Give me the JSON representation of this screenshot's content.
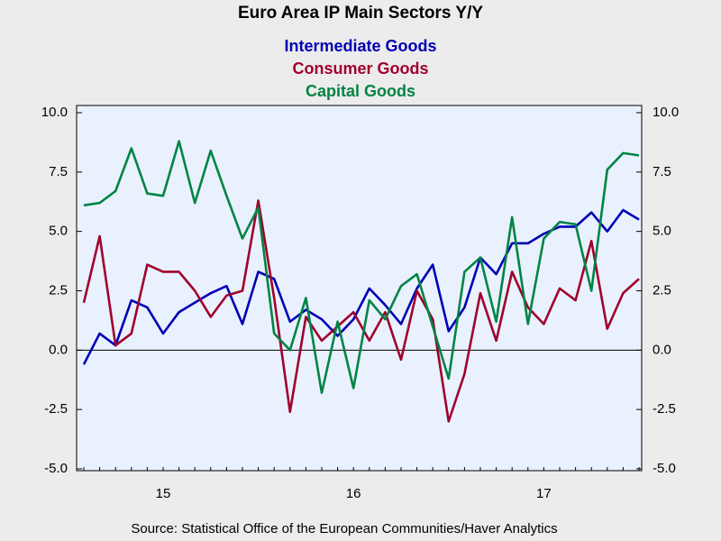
{
  "chart_data": {
    "type": "line",
    "title": "Euro Area IP Main Sectors Y/Y",
    "source": "Source:  Statistical Office of the European Communities/Haver Analytics",
    "categories": [
      null,
      null,
      null,
      null,
      null,
      "15",
      null,
      null,
      null,
      null,
      null,
      null,
      null,
      null,
      null,
      null,
      null,
      "16",
      null,
      null,
      null,
      null,
      null,
      null,
      null,
      null,
      null,
      null,
      null,
      "17",
      null,
      null,
      null,
      null,
      null,
      null
    ],
    "series": [
      {
        "name": "Intermediate Goods",
        "color": "#0000b4",
        "values": [
          -0.6,
          0.7,
          0.2,
          2.1,
          1.8,
          0.7,
          1.6,
          2.0,
          2.4,
          2.7,
          1.1,
          3.3,
          3.0,
          1.2,
          1.7,
          1.3,
          0.6,
          1.3,
          2.6,
          1.9,
          1.1,
          2.6,
          3.6,
          0.8,
          1.8,
          3.9,
          3.2,
          4.5,
          4.5,
          4.9,
          5.2,
          5.2,
          5.8,
          5.0,
          5.9,
          5.5
        ]
      },
      {
        "name": "Consumer Goods",
        "color": "#a0002c",
        "values": [
          2.0,
          4.8,
          0.2,
          0.7,
          3.6,
          3.3,
          3.3,
          2.5,
          1.4,
          2.3,
          2.5,
          6.3,
          2.2,
          -2.6,
          1.4,
          0.4,
          1.0,
          1.6,
          0.4,
          1.6,
          -0.4,
          2.5,
          1.3,
          -3.0,
          -1.0,
          2.4,
          0.4,
          3.3,
          1.8,
          1.1,
          2.6,
          2.1,
          4.6,
          0.9,
          2.4,
          3.0
        ]
      },
      {
        "name": "Capital Goods",
        "color": "#008444",
        "values": [
          6.1,
          6.2,
          6.7,
          8.5,
          6.6,
          6.5,
          8.8,
          6.2,
          8.4,
          6.5,
          4.7,
          6.0,
          0.7,
          0.0,
          2.2,
          -1.8,
          1.2,
          -1.6,
          2.1,
          1.3,
          2.7,
          3.2,
          1.0,
          -1.2,
          3.3,
          3.9,
          1.2,
          5.6,
          1.1,
          4.7,
          5.4,
          5.3,
          2.5,
          7.6,
          8.3,
          8.2
        ]
      }
    ],
    "ylim": [
      -5,
      10
    ],
    "yticks": [
      {
        "value": -5,
        "label": "-5.0"
      },
      {
        "value": -2.5,
        "label": "-2.5"
      },
      {
        "value": 0,
        "label": "0.0"
      },
      {
        "value": 2.5,
        "label": "2.5"
      },
      {
        "value": 5,
        "label": "5.0"
      },
      {
        "value": 7.5,
        "label": "7.5"
      },
      {
        "value": 10,
        "label": "10.0"
      }
    ],
    "y2lim": [
      -5,
      10
    ],
    "y2ticks": [
      {
        "value": -5,
        "label": "-5.0"
      },
      {
        "value": -2.5,
        "label": "-2.5"
      },
      {
        "value": 0,
        "label": "0.0"
      },
      {
        "value": 2.5,
        "label": "2.5"
      },
      {
        "value": 5,
        "label": "5.0"
      },
      {
        "value": 7.5,
        "label": "7.5"
      },
      {
        "value": 10,
        "label": "10.0"
      }
    ],
    "grid": false
  }
}
